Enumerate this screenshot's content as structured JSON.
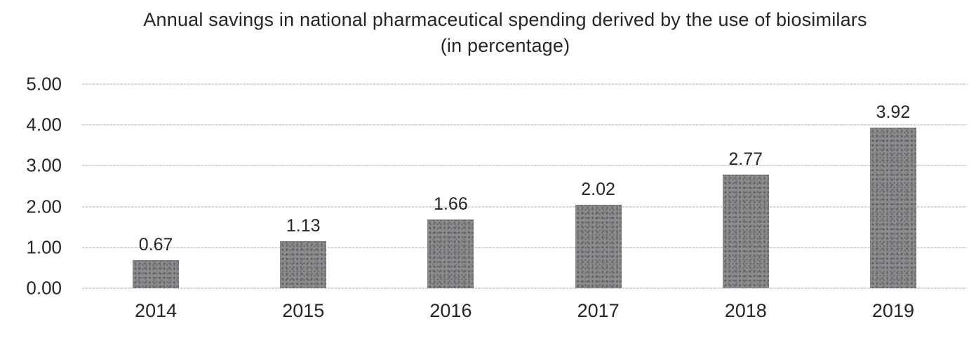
{
  "chart_data": {
    "type": "bar",
    "title": "Annual savings in national pharmaceutical spending derived by the use of biosimilars",
    "subtitle": "(in percentage)",
    "categories": [
      "2014",
      "2015",
      "2016",
      "2017",
      "2018",
      "2019"
    ],
    "values": [
      0.67,
      1.13,
      1.66,
      2.02,
      2.77,
      3.92
    ],
    "value_labels": [
      "0.67",
      "1.13",
      "1.66",
      "2.02",
      "2.77",
      "3.92"
    ],
    "xlabel": "",
    "ylabel": "",
    "ylim": [
      0,
      5
    ],
    "ytick_labels": [
      "5.00",
      "4.00",
      "3.00",
      "2.00",
      "1.00",
      "0.00"
    ],
    "grid": "horizontal-dotted",
    "legend_position": "none",
    "colors": {
      "bar_fill": "#8d8c8a",
      "gridline": "#d9d9d9",
      "text": "#262626",
      "background": "#ffffff"
    }
  }
}
